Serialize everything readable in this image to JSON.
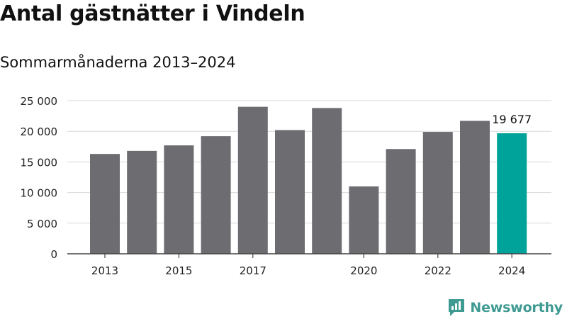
{
  "chart_data": {
    "type": "bar",
    "title": "Antal gästnätter i Vindeln",
    "subtitle": "Sommarmånaderna 2013–2024",
    "categories": [
      "2013",
      "2014",
      "2015",
      "2016",
      "2017",
      "2018",
      "2019",
      "2020",
      "2021",
      "2022",
      "2023",
      "2024"
    ],
    "values": [
      16300,
      16800,
      17700,
      19200,
      24000,
      20200,
      23800,
      11000,
      17100,
      19900,
      21700,
      19677
    ],
    "highlight_index": 11,
    "highlight_label": "19 677",
    "xtick_labels": [
      "2013",
      "2015",
      "2017",
      "2020",
      "2022",
      "2024"
    ],
    "ytick_labels": [
      "0",
      "5 000",
      "10 000",
      "15 000",
      "20 000",
      "25 000"
    ],
    "yticks": [
      0,
      5000,
      10000,
      15000,
      20000,
      25000
    ],
    "ylim": [
      0,
      25000
    ],
    "xlabel": "",
    "ylabel": "",
    "grid": true,
    "bar_color": "#6d6c70",
    "highlight_color": "#00a39a"
  },
  "brand": {
    "name": "Newsworthy",
    "color": "#3f9a92"
  }
}
